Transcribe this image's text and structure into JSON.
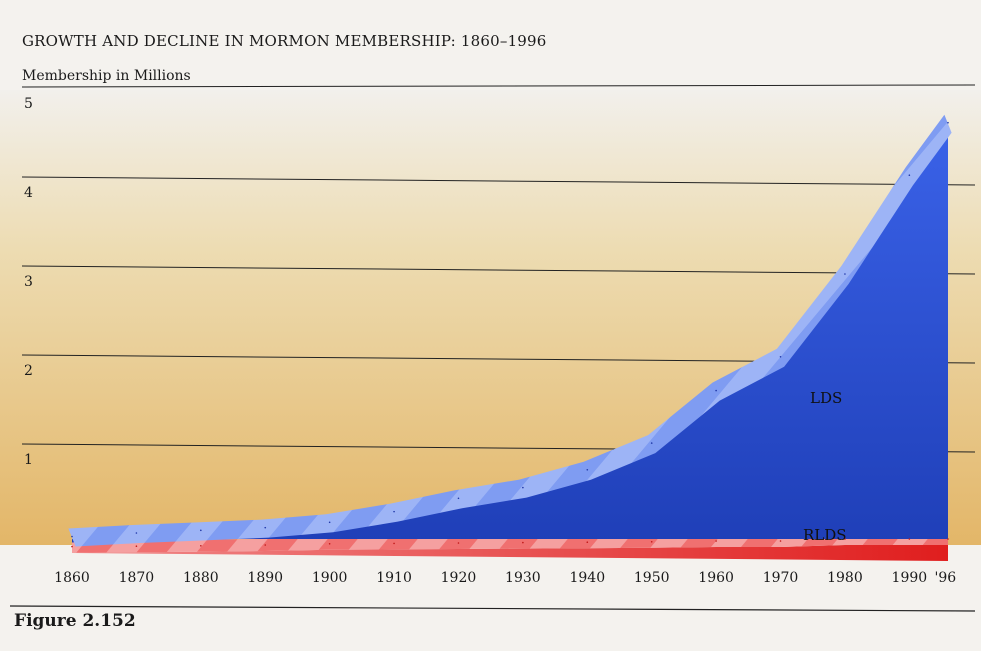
{
  "figure": {
    "title": "GROWTH AND DECLINE IN MORMON MEMBERSHIP: 1860–1996",
    "caption": "Figure 2.152"
  },
  "chart_data": {
    "type": "area",
    "title": "GROWTH AND DECLINE IN MORMON MEMBERSHIP: 1860–1996",
    "xlabel": "",
    "ylabel": "Membership in Millions",
    "x": [
      1860,
      1870,
      1880,
      1890,
      1900,
      1910,
      1920,
      1930,
      1940,
      1950,
      1960,
      1970,
      1980,
      1990,
      1996
    ],
    "x_tick_labels": [
      "1860",
      "1870",
      "1880",
      "1890",
      "1900",
      "1910",
      "1920",
      "1930",
      "1940",
      "1950",
      "1960",
      "1970",
      "1980",
      "1990",
      "'96"
    ],
    "y_ticks": [
      "1",
      "2",
      "3",
      "4",
      "5"
    ],
    "ylim": [
      0,
      5
    ],
    "grid": true,
    "series": [
      {
        "name": "LDS",
        "color": "#2a4fd6",
        "values": [
          0.05,
          0.09,
          0.12,
          0.15,
          0.21,
          0.33,
          0.48,
          0.6,
          0.8,
          1.1,
          1.69,
          2.07,
          3.0,
          4.11,
          4.7
        ]
      },
      {
        "name": "RLDS",
        "color": "#e62828",
        "values": [
          0.01,
          0.02,
          0.03,
          0.05,
          0.08,
          0.09,
          0.1,
          0.11,
          0.12,
          0.13,
          0.15,
          0.15,
          0.2,
          0.2,
          0.2
        ]
      }
    ],
    "background_gradient": [
      "#f2f0ec",
      "#ead9a8",
      "#e0b060"
    ]
  }
}
